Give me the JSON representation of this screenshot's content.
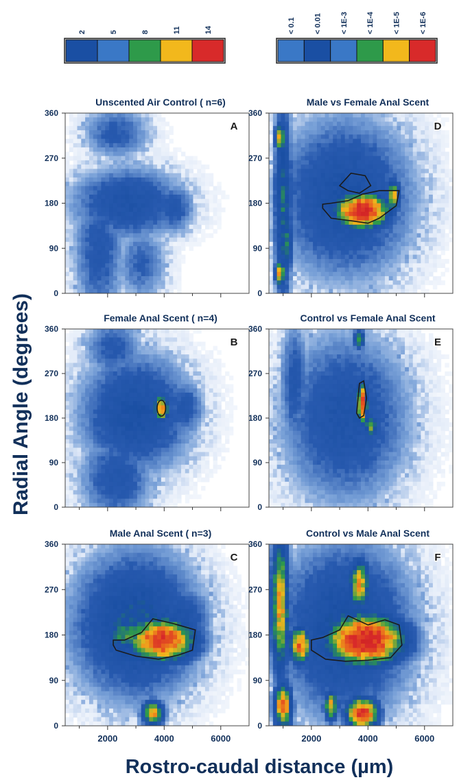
{
  "chart_data": [
    {
      "panel": "A",
      "title": "Unscented Air Control ( n=6)",
      "type": "heatmap",
      "xlabel": "Rostro-caudal distance (µm)",
      "ylabel": "Radial Angle (degrees)",
      "xlim": [
        500,
        7000
      ],
      "ylim": [
        0,
        360
      ],
      "x_ticks": [
        2000,
        4000,
        6000
      ],
      "y_ticks": [
        0,
        90,
        180,
        270,
        360
      ],
      "scale": "count",
      "blobs": [
        {
          "x": 2700,
          "y": 180,
          "sx": 1500,
          "sy": 55,
          "v": 4.2
        },
        {
          "x": 4300,
          "y": 170,
          "sx": 600,
          "sy": 40,
          "v": 3.5
        },
        {
          "x": 1700,
          "y": 90,
          "sx": 700,
          "sy": 110,
          "v": 3.4
        },
        {
          "x": 2300,
          "y": 320,
          "sx": 900,
          "sy": 40,
          "v": 3.2
        },
        {
          "x": 3200,
          "y": 60,
          "sx": 700,
          "sy": 60,
          "v": 2.9
        }
      ]
    },
    {
      "panel": "B",
      "title": "Female Anal Scent ( n=4)",
      "type": "heatmap",
      "xlim": [
        500,
        7000
      ],
      "ylim": [
        0,
        360
      ],
      "x_ticks": [
        2000,
        4000,
        6000
      ],
      "y_ticks": [
        0,
        90,
        180,
        270,
        360
      ],
      "scale": "count",
      "blobs": [
        {
          "x": 3000,
          "y": 190,
          "sx": 1500,
          "sy": 90,
          "v": 4.6
        },
        {
          "x": 4700,
          "y": 200,
          "sx": 550,
          "sy": 45,
          "v": 3.6
        },
        {
          "x": 2300,
          "y": 60,
          "sx": 1000,
          "sy": 70,
          "v": 3.6
        },
        {
          "x": 2200,
          "y": 320,
          "sx": 800,
          "sy": 45,
          "v": 3.3
        },
        {
          "x": 3900,
          "y": 200,
          "sx": 230,
          "sy": 22,
          "v": 8.8
        }
      ],
      "contours": [
        {
          "x": 3900,
          "y": 200,
          "rx": 150,
          "ry": 16
        }
      ]
    },
    {
      "panel": "C",
      "title": "Male Anal Scent ( n=3)",
      "type": "heatmap",
      "xlim": [
        500,
        7000
      ],
      "ylim": [
        0,
        360
      ],
      "x_ticks": [
        2000,
        4000,
        6000
      ],
      "y_ticks": [
        0,
        90,
        180,
        270,
        360
      ],
      "scale": "count",
      "blobs": [
        {
          "x": 3000,
          "y": 200,
          "sx": 1700,
          "sy": 110,
          "v": 5.2
        },
        {
          "x": 4600,
          "y": 210,
          "sx": 800,
          "sy": 55,
          "v": 4.2
        },
        {
          "x": 2700,
          "y": 180,
          "sx": 700,
          "sy": 30,
          "v": 6.5
        },
        {
          "x": 3900,
          "y": 170,
          "sx": 950,
          "sy": 35,
          "v": 10.5
        },
        {
          "x": 3600,
          "y": 25,
          "sx": 300,
          "sy": 20,
          "v": 8.5
        }
      ],
      "contours": [
        {
          "points": [
            [
              2200,
              160
            ],
            [
              2300,
              150
            ],
            [
              3000,
              138
            ],
            [
              3800,
              132
            ],
            [
              4500,
              140
            ],
            [
              5000,
              150
            ],
            [
              5100,
              190
            ],
            [
              4300,
              203
            ],
            [
              3600,
              212
            ],
            [
              3200,
              185
            ],
            [
              2600,
              170
            ],
            [
              2200,
              170
            ]
          ]
        }
      ]
    },
    {
      "panel": "D",
      "title": "Male vs Female Anal Scent",
      "type": "heatmap",
      "xlim": [
        500,
        7000
      ],
      "ylim": [
        0,
        360
      ],
      "x_ticks": [
        2000,
        4000,
        6000
      ],
      "y_ticks": [
        0,
        90,
        180,
        270,
        360
      ],
      "scale": "p",
      "blobs": [
        {
          "x": 3200,
          "y": 190,
          "sx": 1800,
          "sy": 120,
          "v": 4.6
        },
        {
          "x": 1000,
          "y": 180,
          "sx": 250,
          "sy": 160,
          "v": 5.6
        },
        {
          "x": 3800,
          "y": 165,
          "sx": 750,
          "sy": 28,
          "v": 11.5
        },
        {
          "x": 4900,
          "y": 195,
          "sx": 180,
          "sy": 25,
          "v": 8.5
        },
        {
          "x": 900,
          "y": 310,
          "sx": 150,
          "sy": 25,
          "v": 8.0
        },
        {
          "x": 900,
          "y": 40,
          "sx": 150,
          "sy": 20,
          "v": 8.5
        },
        {
          "x": 1100,
          "y": 100,
          "sx": 200,
          "sy": 50,
          "v": 6.0
        }
      ],
      "contours": [
        {
          "points": [
            [
              2400,
              170
            ],
            [
              2700,
              150
            ],
            [
              3400,
              145
            ],
            [
              4000,
              140
            ],
            [
              4400,
              150
            ],
            [
              5000,
              175
            ],
            [
              5100,
              205
            ],
            [
              4400,
              205
            ],
            [
              3800,
              198
            ],
            [
              3300,
              185
            ],
            [
              2700,
              180
            ],
            [
              2400,
              178
            ]
          ]
        },
        {
          "points": [
            [
              3000,
              215
            ],
            [
              3400,
              240
            ],
            [
              3900,
              235
            ],
            [
              4100,
              215
            ],
            [
              3700,
              200
            ],
            [
              3300,
              205
            ]
          ]
        }
      ],
      "legend": [
        "< 0.1",
        "< 0.01",
        "< 1E-3",
        "< 1E-4",
        "< 1E-5",
        "< 1E-6"
      ]
    },
    {
      "panel": "E",
      "title": "Control vs Female Anal Scent",
      "type": "heatmap",
      "xlim": [
        500,
        7000
      ],
      "ylim": [
        0,
        360
      ],
      "x_ticks": [
        2000,
        4000,
        6000
      ],
      "y_ticks": [
        0,
        90,
        180,
        270,
        360
      ],
      "scale": "p",
      "blobs": [
        {
          "x": 3200,
          "y": 180,
          "sx": 1700,
          "sy": 130,
          "v": 4.1
        },
        {
          "x": 3800,
          "y": 210,
          "sx": 150,
          "sy": 35,
          "v": 10.0
        },
        {
          "x": 4100,
          "y": 165,
          "sx": 200,
          "sy": 20,
          "v": 7.0
        },
        {
          "x": 3700,
          "y": 340,
          "sx": 150,
          "sy": 15,
          "v": 7.0
        },
        {
          "x": 1400,
          "y": 250,
          "sx": 400,
          "sy": 100,
          "v": 3.5
        }
      ],
      "contours": [
        {
          "points": [
            [
              3600,
              190
            ],
            [
              3700,
              250
            ],
            [
              3850,
              255
            ],
            [
              3950,
              220
            ],
            [
              3850,
              185
            ],
            [
              3700,
              180
            ]
          ]
        }
      ]
    },
    {
      "panel": "F",
      "title": "Control vs Male Anal Scent",
      "type": "heatmap",
      "xlim": [
        500,
        7000
      ],
      "ylim": [
        0,
        360
      ],
      "x_ticks": [
        2000,
        4000,
        6000
      ],
      "y_ticks": [
        0,
        90,
        180,
        270,
        360
      ],
      "scale": "p",
      "blobs": [
        {
          "x": 3200,
          "y": 190,
          "sx": 1800,
          "sy": 130,
          "v": 5.0
        },
        {
          "x": 3900,
          "y": 170,
          "sx": 1100,
          "sy": 40,
          "v": 11.5
        },
        {
          "x": 900,
          "y": 240,
          "sx": 250,
          "sy": 110,
          "v": 8.5
        },
        {
          "x": 1000,
          "y": 40,
          "sx": 250,
          "sy": 35,
          "v": 9.5
        },
        {
          "x": 3800,
          "y": 25,
          "sx": 450,
          "sy": 25,
          "v": 10.5
        },
        {
          "x": 1600,
          "y": 160,
          "sx": 300,
          "sy": 30,
          "v": 9.5
        },
        {
          "x": 2700,
          "y": 40,
          "sx": 200,
          "sy": 25,
          "v": 8.0
        },
        {
          "x": 3700,
          "y": 280,
          "sx": 300,
          "sy": 40,
          "v": 8.5
        }
      ],
      "contours": [
        {
          "points": [
            [
              2000,
              150
            ],
            [
              2500,
              132
            ],
            [
              3200,
              128
            ],
            [
              4000,
              130
            ],
            [
              4800,
              135
            ],
            [
              5200,
              160
            ],
            [
              5100,
              200
            ],
            [
              4600,
              210
            ],
            [
              4000,
              200
            ],
            [
              3300,
              218
            ],
            [
              3000,
              190
            ],
            [
              2400,
              175
            ],
            [
              2000,
              170
            ]
          ]
        }
      ]
    }
  ],
  "legend_counts": [
    "2",
    "5",
    "8",
    "11",
    "14"
  ],
  "legend_p": [
    "< 0.1",
    "< 0.01",
    "< 1E-3",
    "< 1E-4",
    "< 1E-5",
    "< 1E-6"
  ],
  "axis_titles": {
    "y": "Radial Angle (degrees)",
    "x": "Rostro-caudal distance (µm)"
  },
  "colors": {
    "c1": "#1a4fa3",
    "c2": "#3a78c6",
    "c3": "#2e9a4a",
    "c4": "#f2b81c",
    "c5": "#d82a2a",
    "text": "#12305a"
  }
}
